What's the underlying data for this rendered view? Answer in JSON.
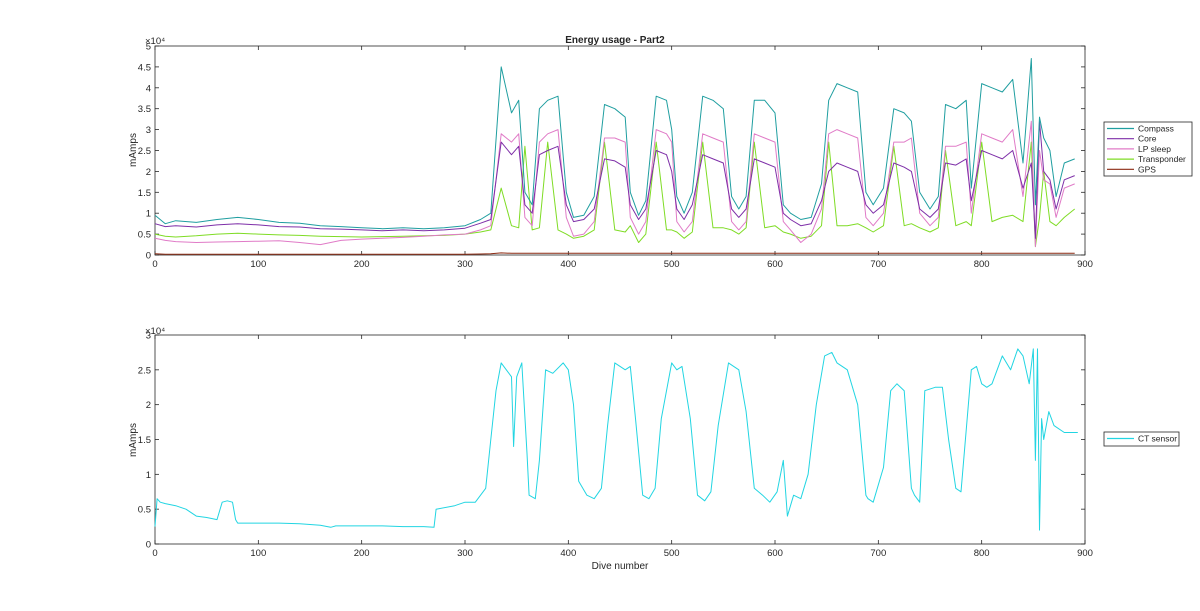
{
  "colors": {
    "Compass": "#1f9ea0",
    "Core": "#7e2fa8",
    "LP sleep": "#e07bc7",
    "Transponder": "#7fdc25",
    "GPS": "#8c2a12",
    "CT sensor": "#22d5e2",
    "axis": "#262626"
  },
  "chart_data": [
    {
      "type": "line",
      "title": "Energy usage - Part2",
      "xlabel": "",
      "ylabel": "mAmps",
      "xlim": [
        0,
        900
      ],
      "ylim": [
        0,
        50000
      ],
      "exponent_label": "×10⁴",
      "x_ticks": [
        0,
        100,
        200,
        300,
        400,
        500,
        600,
        700,
        800,
        900
      ],
      "x_tick_labels": [
        "0",
        "100",
        "200",
        "300",
        "400",
        "500",
        "600",
        "700",
        "800",
        "900"
      ],
      "y_ticks": [
        0,
        5000,
        10000,
        15000,
        20000,
        25000,
        30000,
        35000,
        40000,
        45000,
        50000
      ],
      "y_tick_labels": [
        "0",
        "0.5",
        "1",
        "1.5",
        "2",
        "2.5",
        "3",
        "3.5",
        "4",
        "4.5",
        "5"
      ],
      "grid": false,
      "legend_position": "outside-right",
      "legend": [
        "Compass",
        "Core",
        "LP sleep",
        "Transponder",
        "GPS"
      ],
      "x": [
        0,
        10,
        20,
        40,
        60,
        80,
        100,
        120,
        140,
        160,
        180,
        200,
        220,
        240,
        260,
        280,
        300,
        315,
        325,
        335,
        345,
        352,
        358,
        365,
        372,
        380,
        390,
        398,
        405,
        415,
        425,
        435,
        445,
        455,
        460,
        468,
        475,
        485,
        495,
        500,
        505,
        512,
        520,
        530,
        540,
        550,
        558,
        565,
        572,
        580,
        590,
        600,
        608,
        615,
        625,
        635,
        645,
        652,
        660,
        670,
        680,
        688,
        695,
        705,
        715,
        725,
        732,
        740,
        750,
        758,
        765,
        775,
        785,
        790,
        800,
        810,
        820,
        830,
        840,
        848,
        852,
        856,
        860,
        866,
        872,
        880,
        890
      ],
      "series": [
        {
          "name": "Compass",
          "values": [
            9500,
            7500,
            8200,
            7800,
            8500,
            9000,
            8500,
            7800,
            7600,
            7000,
            6800,
            6500,
            6300,
            6500,
            6300,
            6500,
            7000,
            8500,
            10000,
            45000,
            34000,
            37000,
            15000,
            12000,
            35000,
            37000,
            38000,
            15000,
            9000,
            9500,
            14000,
            36000,
            35000,
            33000,
            15000,
            9500,
            13000,
            38000,
            37000,
            30000,
            14000,
            10000,
            15000,
            38000,
            37000,
            35000,
            14000,
            11000,
            14000,
            37000,
            37000,
            34000,
            12000,
            10000,
            8500,
            9000,
            17000,
            37000,
            41000,
            40000,
            39000,
            15000,
            12000,
            16000,
            35000,
            34000,
            32000,
            15000,
            11000,
            14000,
            36000,
            35000,
            37000,
            16000,
            41000,
            40000,
            39000,
            42000,
            22000,
            47000,
            12000,
            33000,
            28000,
            25000,
            14000,
            22000,
            23000
          ]
        },
        {
          "name": "Core",
          "values": [
            7500,
            6800,
            7000,
            6700,
            7200,
            7500,
            7200,
            6800,
            6700,
            6300,
            6200,
            6000,
            5800,
            6000,
            5800,
            6000,
            6400,
            7600,
            8500,
            27000,
            24000,
            26000,
            12000,
            10000,
            24000,
            25000,
            26000,
            12000,
            8000,
            8500,
            11000,
            23000,
            22500,
            21000,
            12000,
            8500,
            11000,
            25000,
            24000,
            20000,
            11000,
            8500,
            12000,
            24000,
            23000,
            22000,
            11000,
            9000,
            11000,
            23000,
            22000,
            21000,
            10000,
            8500,
            7000,
            7500,
            13000,
            20000,
            22000,
            21000,
            20000,
            12000,
            10000,
            12000,
            22000,
            21000,
            20000,
            11000,
            9000,
            11000,
            22000,
            21500,
            23000,
            13000,
            25000,
            24000,
            23000,
            25000,
            16000,
            22000,
            4000,
            32000,
            20000,
            18000,
            11000,
            18000,
            19000
          ]
        },
        {
          "name": "LP sleep",
          "values": [
            4000,
            3500,
            3200,
            3000,
            3100,
            3200,
            3300,
            3400,
            3000,
            2500,
            3500,
            3800,
            4000,
            4200,
            4500,
            4800,
            5000,
            6000,
            7000,
            29000,
            27000,
            29000,
            9000,
            7000,
            27000,
            29000,
            30000,
            9000,
            4500,
            5000,
            8000,
            28000,
            28000,
            27000,
            9000,
            5000,
            8000,
            30000,
            29000,
            27000,
            8000,
            5500,
            8000,
            29000,
            28000,
            27000,
            8000,
            6000,
            8000,
            29000,
            28000,
            27000,
            8000,
            6000,
            3000,
            5000,
            11000,
            29000,
            30000,
            29000,
            28000,
            9000,
            7000,
            10000,
            27000,
            27000,
            28000,
            10000,
            7000,
            9000,
            26000,
            26000,
            27000,
            10000,
            29000,
            28000,
            27000,
            30000,
            14000,
            32000,
            2000,
            25000,
            18000,
            17000,
            9000,
            16000,
            17000
          ]
        },
        {
          "name": "Transponder",
          "values": [
            5000,
            4500,
            4300,
            4600,
            5000,
            5200,
            5000,
            4800,
            4700,
            4500,
            4400,
            4300,
            4400,
            4500,
            4600,
            4700,
            5000,
            5500,
            6000,
            16000,
            7000,
            6500,
            26000,
            6000,
            6500,
            27000,
            6000,
            5000,
            4000,
            4500,
            6000,
            27000,
            6000,
            5500,
            7000,
            3000,
            5000,
            27000,
            6000,
            6000,
            5500,
            4000,
            5500,
            27000,
            6500,
            6500,
            6000,
            5000,
            6500,
            27000,
            6500,
            7000,
            5500,
            5000,
            4000,
            4500,
            7000,
            27000,
            7000,
            7000,
            7500,
            6500,
            5500,
            7000,
            26000,
            7000,
            7500,
            6500,
            5500,
            6500,
            25000,
            7000,
            8000,
            7000,
            27000,
            8000,
            9000,
            9500,
            8000,
            27000,
            2000,
            9000,
            20000,
            8000,
            7000,
            9000,
            11000
          ]
        },
        {
          "name": "GPS",
          "values": [
            300,
            200,
            200,
            200,
            200,
            200,
            200,
            200,
            200,
            200,
            200,
            200,
            200,
            200,
            200,
            200,
            200,
            250,
            300,
            500,
            400,
            400,
            400,
            400,
            400,
            400,
            400,
            400,
            400,
            400,
            400,
            400,
            400,
            400,
            400,
            400,
            400,
            400,
            400,
            400,
            400,
            400,
            400,
            400,
            400,
            400,
            400,
            400,
            400,
            400,
            400,
            400,
            400,
            400,
            400,
            400,
            400,
            400,
            400,
            400,
            400,
            400,
            400,
            400,
            400,
            400,
            400,
            400,
            400,
            400,
            400,
            400,
            400,
            400,
            400,
            400,
            400,
            400,
            400,
            400,
            400,
            400,
            400,
            400,
            400,
            400,
            400
          ]
        }
      ]
    },
    {
      "type": "line",
      "title": "",
      "xlabel": "Dive number",
      "ylabel": "mAmps",
      "xlim": [
        0,
        900
      ],
      "ylim": [
        0,
        30000
      ],
      "exponent_label": "×10⁴",
      "x_ticks": [
        0,
        100,
        200,
        300,
        400,
        500,
        600,
        700,
        800,
        900
      ],
      "x_tick_labels": [
        "0",
        "100",
        "200",
        "300",
        "400",
        "500",
        "600",
        "700",
        "800",
        "900"
      ],
      "y_ticks": [
        0,
        5000,
        10000,
        15000,
        20000,
        25000,
        30000
      ],
      "y_tick_labels": [
        "0",
        "0.5",
        "1",
        "1.5",
        "2",
        "2.5",
        "3"
      ],
      "grid": false,
      "legend_position": "outside-right",
      "legend": [
        "CT sensor"
      ],
      "x": [
        0,
        2,
        5,
        10,
        20,
        30,
        40,
        50,
        60,
        65,
        70,
        75,
        78,
        80,
        100,
        120,
        140,
        160,
        170,
        175,
        190,
        200,
        220,
        240,
        260,
        270,
        272,
        290,
        300,
        310,
        320,
        325,
        330,
        335,
        340,
        345,
        347,
        350,
        355,
        360,
        362,
        368,
        372,
        378,
        385,
        395,
        400,
        405,
        410,
        418,
        425,
        432,
        438,
        445,
        455,
        460,
        465,
        472,
        478,
        484,
        490,
        500,
        505,
        510,
        518,
        525,
        532,
        538,
        545,
        555,
        560,
        565,
        572,
        580,
        588,
        595,
        602,
        608,
        612,
        618,
        625,
        632,
        640,
        648,
        655,
        660,
        670,
        680,
        688,
        690,
        695,
        705,
        712,
        718,
        725,
        732,
        735,
        740,
        745,
        755,
        762,
        768,
        775,
        780,
        790,
        795,
        800,
        805,
        810,
        820,
        828,
        835,
        840,
        846,
        850,
        852,
        854,
        856,
        858,
        860,
        865,
        870,
        880,
        893
      ],
      "series": [
        {
          "name": "CT sensor",
          "values": [
            2500,
            6500,
            6000,
            5800,
            5500,
            5000,
            4000,
            3800,
            3500,
            6000,
            6200,
            6000,
            3500,
            3000,
            3000,
            3000,
            2900,
            2700,
            2400,
            2600,
            2600,
            2600,
            2600,
            2500,
            2500,
            2400,
            5000,
            5500,
            6000,
            6000,
            8000,
            15000,
            22000,
            26000,
            25000,
            24000,
            14000,
            24000,
            26000,
            13000,
            7000,
            6500,
            12000,
            25000,
            24500,
            26000,
            25000,
            20000,
            9000,
            7000,
            6500,
            8000,
            17000,
            26000,
            25000,
            25500,
            18000,
            7000,
            6500,
            8000,
            18000,
            26000,
            25000,
            25500,
            18000,
            7000,
            6200,
            7500,
            17000,
            26000,
            25500,
            25000,
            19000,
            8000,
            7000,
            6000,
            7500,
            12000,
            4000,
            7000,
            6500,
            10000,
            20000,
            27000,
            27500,
            26000,
            25000,
            20000,
            7000,
            6500,
            6000,
            11000,
            22000,
            23000,
            22000,
            8000,
            7000,
            6000,
            22000,
            22500,
            22500,
            15000,
            8000,
            7500,
            25000,
            25500,
            23000,
            22500,
            23000,
            27000,
            25000,
            28000,
            27000,
            23000,
            28000,
            12000,
            28000,
            2000,
            18000,
            15000,
            19000,
            17000,
            16000,
            16000
          ]
        }
      ]
    }
  ]
}
